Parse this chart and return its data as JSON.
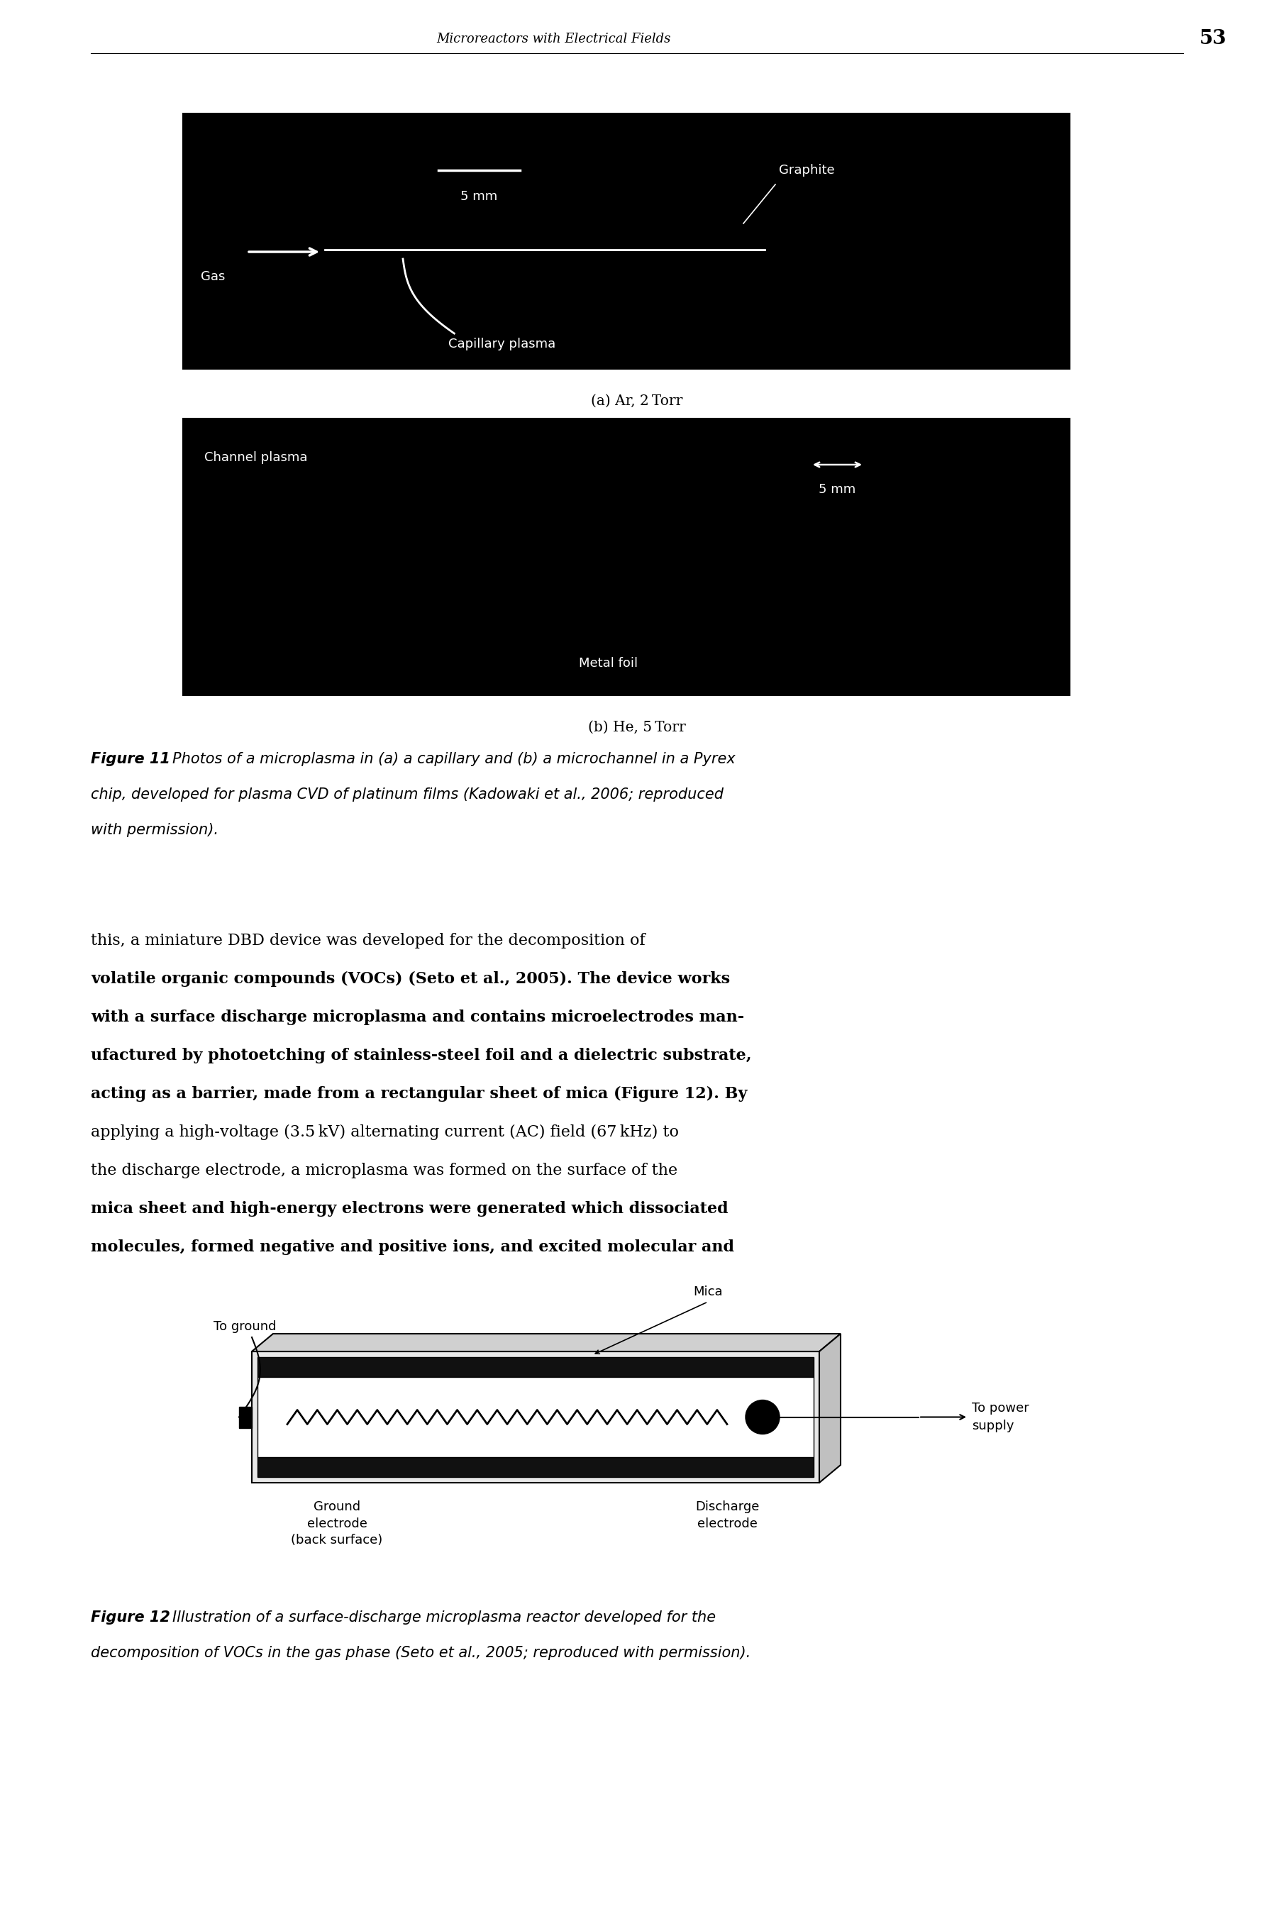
{
  "page_bg": "#ffffff",
  "header_text": "Microreactors with Electrical Fields",
  "header_page": "53",
  "fig_caption_a": "(a) Ar, 2 Torr",
  "fig_caption_b": "(b) He, 5 Torr",
  "photo_a_labels": {
    "scale": "5 mm",
    "graphite": "Graphite",
    "gas": "Gas",
    "capillary": "Capillary plasma"
  },
  "photo_b_labels": {
    "channel": "Channel plasma",
    "scale": "5 mm",
    "metal": "Metal foil"
  },
  "fig11_bold": "Figure 11",
  "fig11_lines": [
    "Photos of a microplasma in (a) a capillary and (b) a microchannel in a Pyrex",
    "chip, developed for plasma CVD of platinum films (Kadowaki et al., 2006; reproduced",
    "with permission)."
  ],
  "body_lines": [
    "this, a miniature DBD device was developed for the decomposition of",
    "volatile organic compounds (VOCs) (Seto et al., 2005). The device works",
    "with a surface discharge microplasma and contains microelectrodes man-",
    "ufactured by photoetching of stainless-steel foil and a dielectric substrate,",
    "acting as a barrier, made from a rectangular sheet of mica (Figure 12). By",
    "applying a high-voltage (3.5 kV) alternating current (AC) field (67 kHz) to",
    "the discharge electrode, a microplasma was formed on the surface of the",
    "mica sheet and high-energy electrons were generated which dissociated",
    "molecules, formed negative and positive ions, and excited molecular and"
  ],
  "body_bold_lines": [
    1,
    2,
    3,
    4,
    7,
    8
  ],
  "diag_labels": {
    "mica": "Mica",
    "to_ground": "To ground",
    "to_power": "To power\nsupply",
    "ground_elec": "Ground\nelectrode\n(back surface)",
    "discharge_elec": "Discharge\nelectrode"
  },
  "fig12_bold": "Figure 12",
  "fig12_lines": [
    "Illustration of a surface-discharge microplasma reactor developed for the",
    "decomposition of VOCs in the gas phase (Seto et al., 2005; reproduced with permission)."
  ]
}
